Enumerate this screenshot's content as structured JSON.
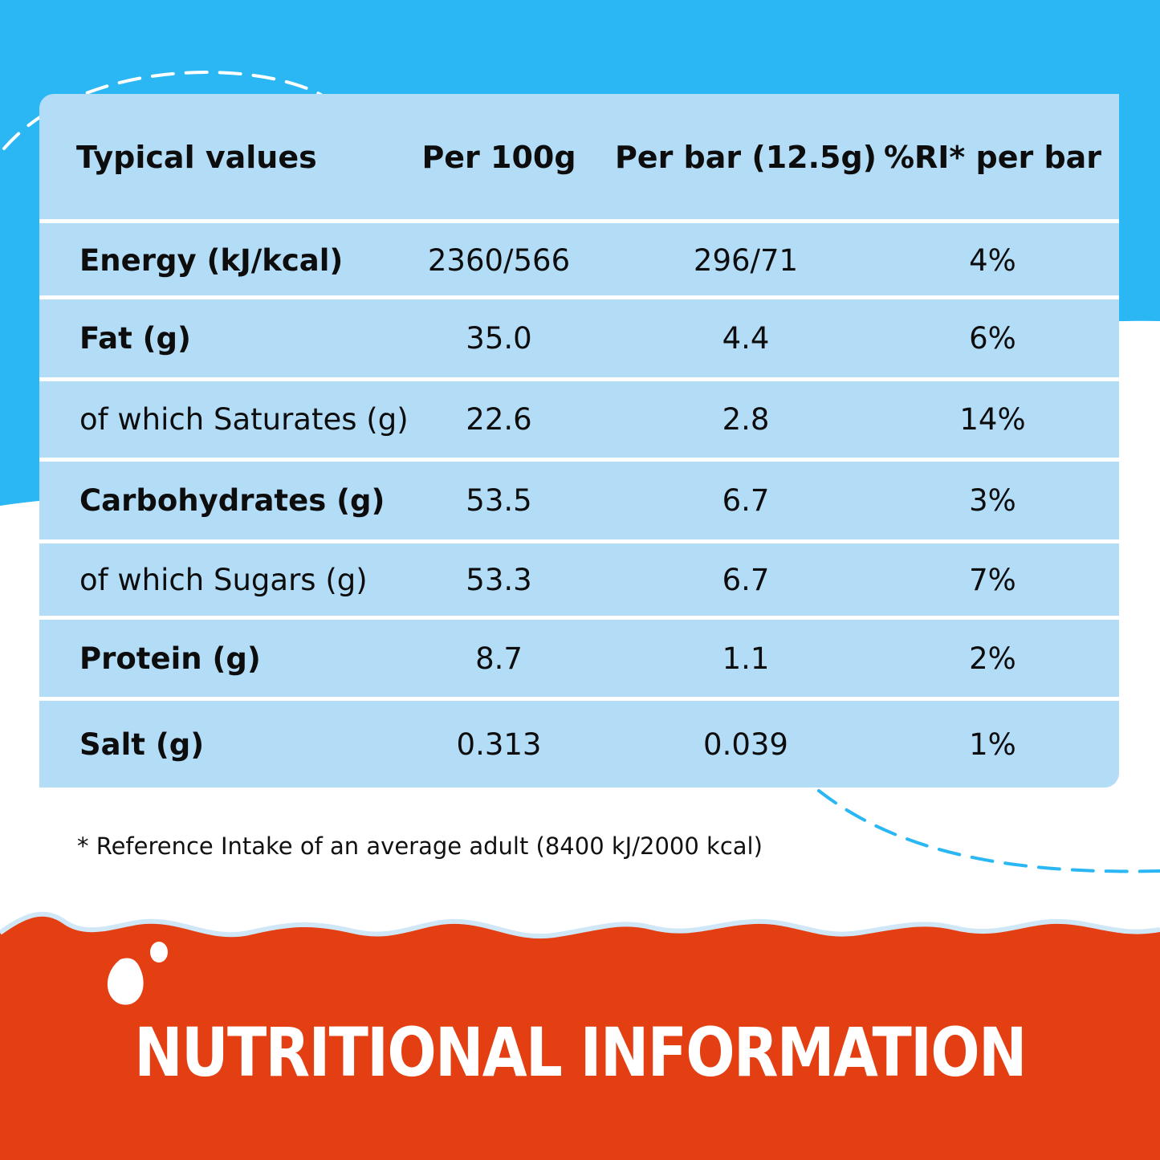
{
  "colors": {
    "sky": "#2ab7f4",
    "table": "#b3dcf7",
    "banner": "#e33f13",
    "text": "#0d0d0d"
  },
  "table": {
    "headers": [
      "Typical values",
      "Per 100g",
      "Per bar (12.5g)",
      "%RI* per bar"
    ],
    "rows": [
      {
        "label": "Energy (kJ/kcal)",
        "per100g": "2360/566",
        "perBar": "296/71",
        "ri": "4%",
        "bold": true
      },
      {
        "label": "Fat (g)",
        "per100g": "35.0",
        "perBar": "4.4",
        "ri": "6%",
        "bold": true
      },
      {
        "label": "of which Saturates (g)",
        "per100g": "22.6",
        "perBar": "2.8",
        "ri": "14%",
        "bold": false
      },
      {
        "label": "Carbohydrates (g)",
        "per100g": "53.5",
        "perBar": "6.7",
        "ri": "3%",
        "bold": true
      },
      {
        "label": "of which Sugars (g)",
        "per100g": "53.3",
        "perBar": "6.7",
        "ri": "7%",
        "bold": false
      },
      {
        "label": "Protein (g)",
        "per100g": "8.7",
        "perBar": "1.1",
        "ri": "2%",
        "bold": true
      },
      {
        "label": "Salt (g)",
        "per100g": "0.313",
        "perBar": "0.039",
        "ri": "1%",
        "bold": true
      }
    ]
  },
  "footnote": "* Reference Intake of an average adult (8400 kJ/2000 kcal)",
  "banner": {
    "title": "NUTRITIONAL INFORMATION"
  },
  "icons": {
    "milk_splash": "milk-drop-icon"
  }
}
